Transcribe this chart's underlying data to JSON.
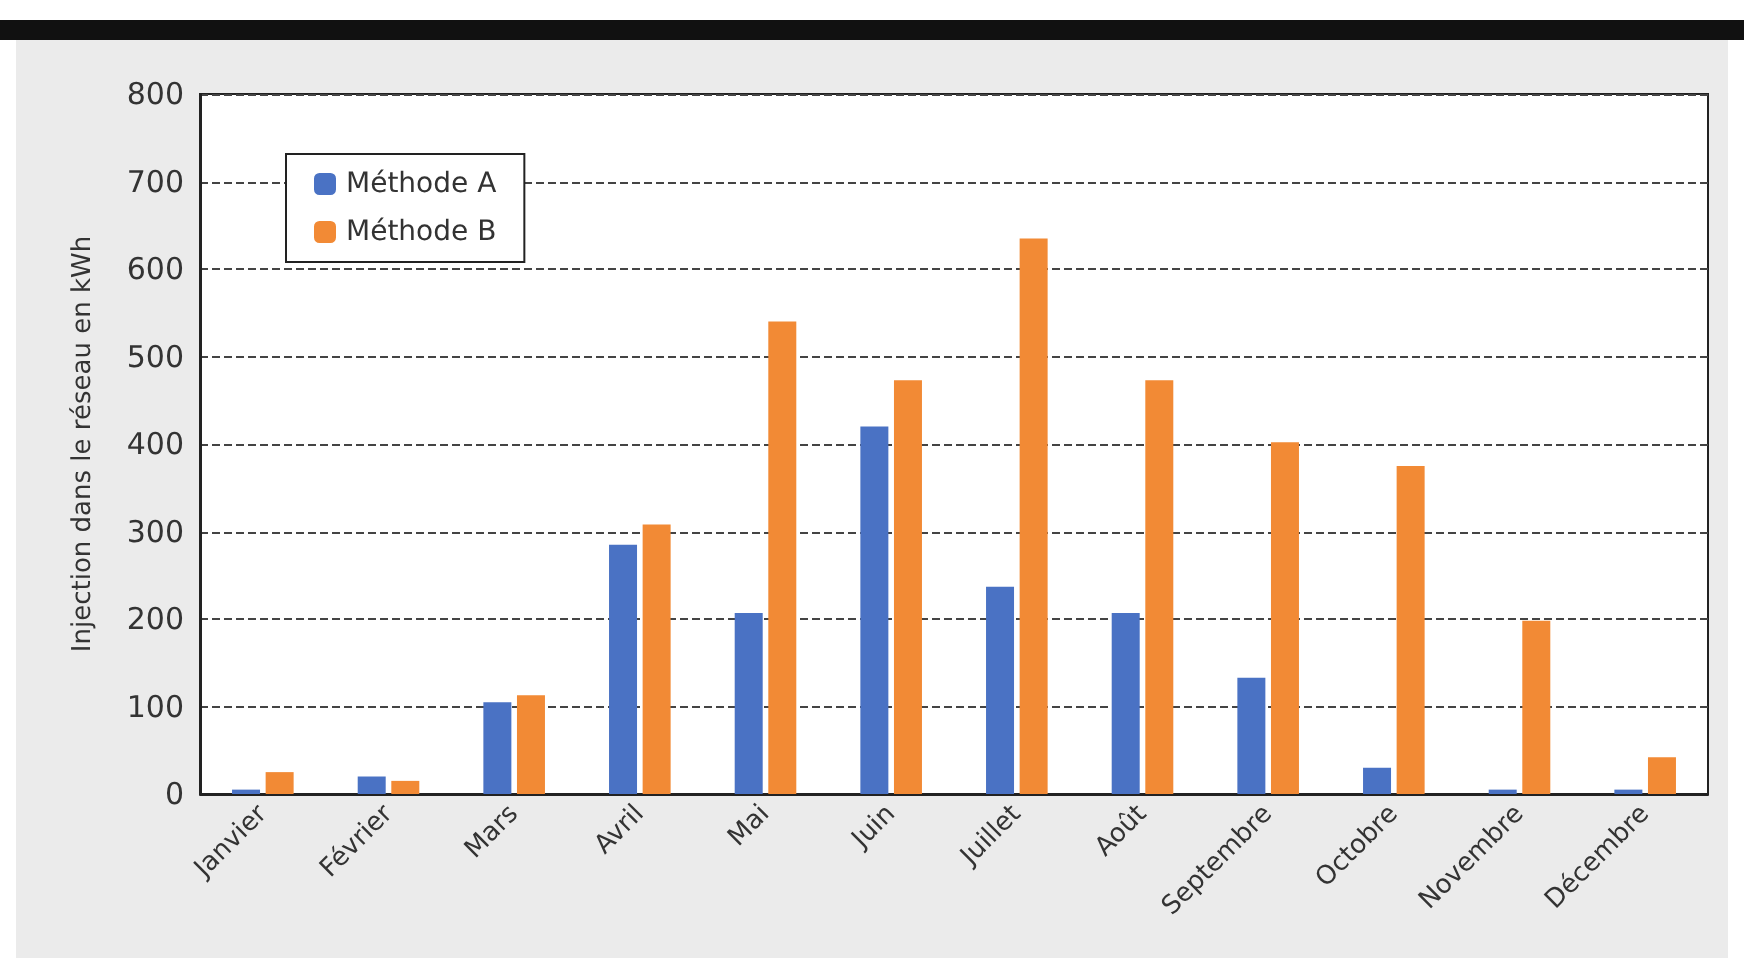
{
  "chart_data": {
    "type": "bar",
    "ylabel": "Injection dans le réseau en kWh",
    "categories": [
      "Janvier",
      "Février",
      "Mars",
      "Avril",
      "Mai",
      "Juin",
      "Juillet",
      "Août",
      "Septembre",
      "Octobre",
      "Novembre",
      "Décembre"
    ],
    "series": [
      {
        "name": "Méthode A",
        "color": "#4a72c4",
        "values": [
          5,
          20,
          105,
          285,
          207,
          420,
          237,
          207,
          133,
          30,
          5,
          5
        ]
      },
      {
        "name": "Méthode B",
        "color": "#f28a35",
        "values": [
          25,
          15,
          113,
          308,
          540,
          473,
          635,
          473,
          402,
          375,
          198,
          42
        ]
      }
    ],
    "ylim": [
      0,
      800
    ],
    "yticks": [
      0,
      100,
      200,
      300,
      400,
      500,
      600,
      700,
      800
    ],
    "grid": "y",
    "line_style": "dashed",
    "legend": "top left"
  }
}
